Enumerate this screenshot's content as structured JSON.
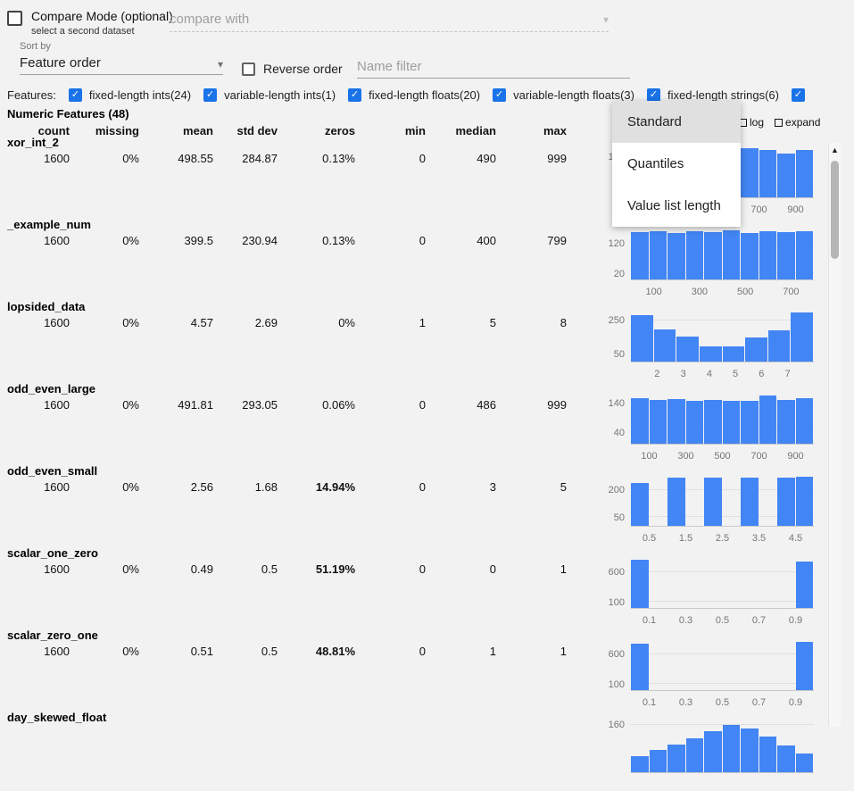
{
  "compare": {
    "label": "Compare Mode (optional)",
    "sublabel": "select a second dataset",
    "placeholder": "compare with"
  },
  "sort": {
    "label": "Sort by",
    "value": "Feature order",
    "reverse_label": "Reverse order",
    "filter_placeholder": "Name filter"
  },
  "features_bar": {
    "label": "Features:",
    "items": [
      {
        "label": "fixed-length ints(24)",
        "checked": true
      },
      {
        "label": "variable-length ints(1)",
        "checked": true
      },
      {
        "label": "fixed-length floats(20)",
        "checked": true
      },
      {
        "label": "variable-length floats(3)",
        "checked": true
      },
      {
        "label": "fixed-length strings(6)",
        "checked": true
      },
      {
        "label": "",
        "checked": true
      }
    ]
  },
  "section": {
    "title": "Numeric Features (48)",
    "columns": [
      "count",
      "missing",
      "mean",
      "std dev",
      "zeros",
      "min",
      "median",
      "max"
    ],
    "log_label": "log",
    "expand_label": "expand"
  },
  "menu": {
    "items": [
      {
        "label": "Standard",
        "selected": true
      },
      {
        "label": "Quantiles",
        "selected": false
      },
      {
        "label": "Value list length",
        "selected": false
      }
    ]
  },
  "rows": [
    {
      "name": "xor_int_2",
      "count": "1600",
      "missing": "0%",
      "mean": "498.55",
      "std_dev": "284.87",
      "zeros": "0.13%",
      "zeros_red": false,
      "min": "0",
      "median": "490",
      "max": "999",
      "chart": {
        "type": "histogram",
        "ymax": 175,
        "values": [
          160,
          152,
          165,
          155,
          158,
          150,
          168,
          162,
          151,
          164
        ],
        "y_ticks": [
          {
            "label": "140",
            "pct": 80
          },
          {
            "label": "40",
            "pct": 23
          }
        ],
        "x_ticks": [
          {
            "label": "100",
            "pct": 10
          },
          {
            "label": "300",
            "pct": 30
          },
          {
            "label": "500",
            "pct": 50
          },
          {
            "label": "700",
            "pct": 70
          },
          {
            "label": "900",
            "pct": 90
          }
        ]
      }
    },
    {
      "name": "_example_num",
      "count": "1600",
      "missing": "0%",
      "mean": "399.5",
      "std_dev": "230.94",
      "zeros": "0.13%",
      "zeros_red": false,
      "min": "0",
      "median": "400",
      "max": "799",
      "chart": {
        "type": "histogram",
        "ymax": 170,
        "values": [
          158,
          162,
          155,
          160,
          157,
          163,
          156,
          161,
          158,
          160
        ],
        "y_ticks": [
          {
            "label": "120",
            "pct": 71
          },
          {
            "label": "20",
            "pct": 12
          }
        ],
        "x_ticks": [
          {
            "label": "100",
            "pct": 12.5
          },
          {
            "label": "300",
            "pct": 37.5
          },
          {
            "label": "500",
            "pct": 62.5
          },
          {
            "label": "700",
            "pct": 87.5
          }
        ]
      }
    },
    {
      "name": "lopsided_data",
      "count": "1600",
      "missing": "0%",
      "mean": "4.57",
      "std_dev": "2.69",
      "zeros": "0%",
      "zeros_red": false,
      "min": "1",
      "median": "5",
      "max": "8",
      "chart": {
        "type": "histogram",
        "ymax": 310,
        "values": [
          285,
          195,
          150,
          95,
          90,
          145,
          190,
          300
        ],
        "y_ticks": [
          {
            "label": "250",
            "pct": 81
          },
          {
            "label": "50",
            "pct": 16
          }
        ],
        "x_ticks": [
          {
            "label": "2",
            "pct": 14.3
          },
          {
            "label": "3",
            "pct": 28.6
          },
          {
            "label": "4",
            "pct": 42.9
          },
          {
            "label": "5",
            "pct": 57.1
          },
          {
            "label": "6",
            "pct": 71.4
          },
          {
            "label": "7",
            "pct": 85.7
          }
        ]
      }
    },
    {
      "name": "odd_even_large",
      "count": "1600",
      "missing": "0%",
      "mean": "491.81",
      "std_dev": "293.05",
      "zeros": "0.06%",
      "zeros_red": false,
      "min": "0",
      "median": "486",
      "max": "999",
      "chart": {
        "type": "histogram",
        "ymax": 178,
        "values": [
          158,
          152,
          155,
          150,
          153,
          151,
          149,
          170,
          152,
          160
        ],
        "y_ticks": [
          {
            "label": "140",
            "pct": 79
          },
          {
            "label": "40",
            "pct": 22
          }
        ],
        "x_ticks": [
          {
            "label": "100",
            "pct": 10
          },
          {
            "label": "300",
            "pct": 30
          },
          {
            "label": "500",
            "pct": 50
          },
          {
            "label": "700",
            "pct": 70
          },
          {
            "label": "900",
            "pct": 90
          }
        ]
      }
    },
    {
      "name": "odd_even_small",
      "count": "1600",
      "missing": "0%",
      "mean": "2.56",
      "std_dev": "1.68",
      "zeros": "14.94%",
      "zeros_red": true,
      "min": "0",
      "median": "3",
      "max": "5",
      "chart": {
        "type": "histogram",
        "ymax": 285,
        "values": [
          239,
          0,
          272,
          0,
          272,
          0,
          272,
          0,
          272,
          273
        ],
        "y_ticks": [
          {
            "label": "200",
            "pct": 70
          },
          {
            "label": "50",
            "pct": 18
          }
        ],
        "x_ticks": [
          {
            "label": "0.5",
            "pct": 10
          },
          {
            "label": "1.5",
            "pct": 30
          },
          {
            "label": "2.5",
            "pct": 50
          },
          {
            "label": "3.5",
            "pct": 70
          },
          {
            "label": "4.5",
            "pct": 90
          }
        ]
      }
    },
    {
      "name": "scalar_one_zero",
      "count": "1600",
      "missing": "0%",
      "mean": "0.49",
      "std_dev": "0.5",
      "zeros": "51.19%",
      "zeros_red": true,
      "min": "0",
      "median": "0",
      "max": "1",
      "chart": {
        "type": "histogram",
        "ymax": 860,
        "values": [
          819,
          0,
          0,
          0,
          0,
          0,
          0,
          0,
          0,
          781
        ],
        "y_ticks": [
          {
            "label": "600",
            "pct": 70
          },
          {
            "label": "100",
            "pct": 12
          }
        ],
        "x_ticks": [
          {
            "label": "0.1",
            "pct": 10
          },
          {
            "label": "0.3",
            "pct": 30
          },
          {
            "label": "0.5",
            "pct": 50
          },
          {
            "label": "0.7",
            "pct": 70
          },
          {
            "label": "0.9",
            "pct": 90
          }
        ]
      }
    },
    {
      "name": "scalar_zero_one",
      "count": "1600",
      "missing": "0%",
      "mean": "0.51",
      "std_dev": "0.5",
      "zeros": "48.81%",
      "zeros_red": true,
      "min": "0",
      "median": "1",
      "max": "1",
      "chart": {
        "type": "histogram",
        "ymax": 860,
        "values": [
          781,
          0,
          0,
          0,
          0,
          0,
          0,
          0,
          0,
          819
        ],
        "y_ticks": [
          {
            "label": "600",
            "pct": 70
          },
          {
            "label": "100",
            "pct": 12
          }
        ],
        "x_ticks": [
          {
            "label": "0.1",
            "pct": 10
          },
          {
            "label": "0.3",
            "pct": 30
          },
          {
            "label": "0.5",
            "pct": 50
          },
          {
            "label": "0.7",
            "pct": 70
          },
          {
            "label": "0.9",
            "pct": 90
          }
        ]
      }
    },
    {
      "name": "day_skewed_float",
      "count": "",
      "missing": "",
      "mean": "",
      "std_dev": "",
      "zeros": "",
      "zeros_red": false,
      "min": "",
      "median": "",
      "max": "",
      "chart": {
        "type": "histogram",
        "ymax": 172,
        "values": [
          55,
          75,
          95,
          115,
          140,
          160,
          148,
          122,
          92,
          62
        ],
        "y_ticks": [
          {
            "label": "160",
            "pct": 93
          }
        ],
        "x_ticks": []
      }
    }
  ]
}
